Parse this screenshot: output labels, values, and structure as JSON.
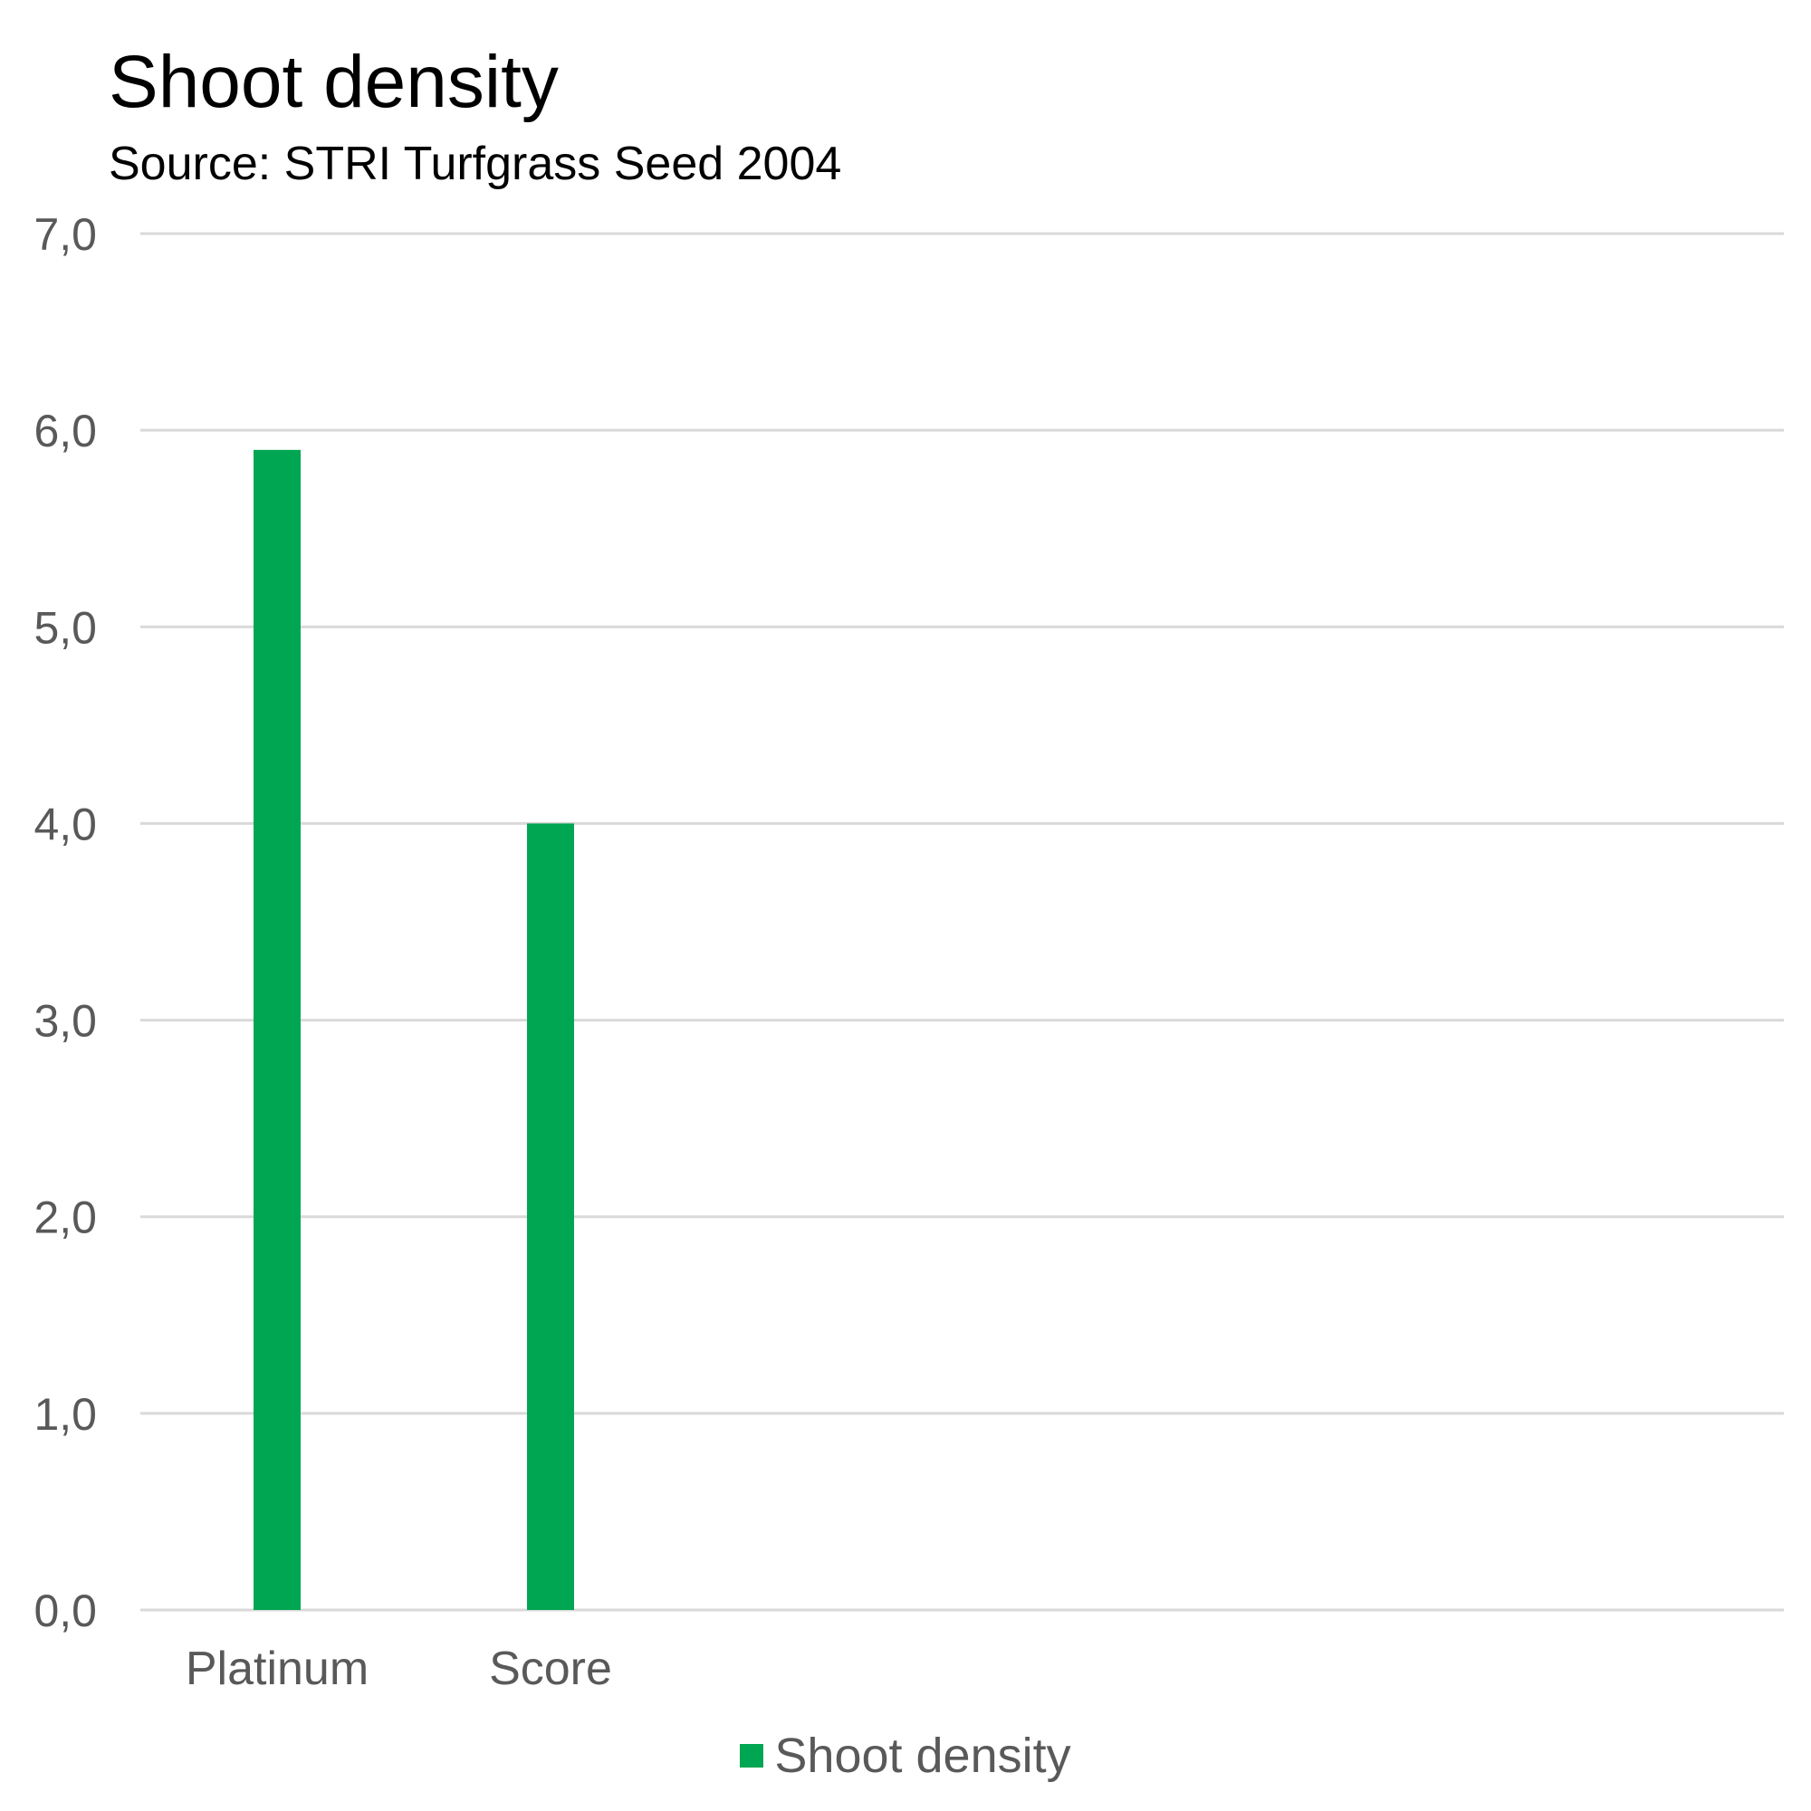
{
  "chart_data": {
    "type": "bar",
    "title": "Shoot density",
    "subtitle": "Source: STRI Turfgrass Seed 2004",
    "categories": [
      "Platinum",
      "Score"
    ],
    "series": [
      {
        "name": "Shoot density",
        "values": [
          5.9,
          4.0
        ],
        "color": "#00A651"
      }
    ],
    "y_ticks": [
      "0,0",
      "1,0",
      "2,0",
      "3,0",
      "4,0",
      "5,0",
      "6,0",
      "7,0"
    ],
    "ylim": [
      0,
      7
    ],
    "grid": true,
    "legend_position": "bottom"
  }
}
